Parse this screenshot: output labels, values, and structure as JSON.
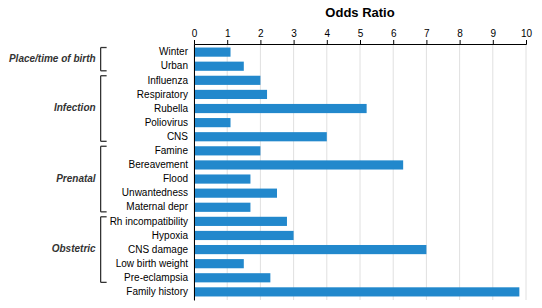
{
  "chart_data": {
    "type": "bar",
    "orientation": "horizontal",
    "title": "Odds Ratio",
    "categories": [
      "Family history",
      "Pre-eclampsia",
      "Low birth weight",
      "CNS damage",
      "Hypoxia",
      "Rh incompatibility",
      "Maternal depr",
      "Unwantedness",
      "Flood",
      "Bereavement",
      "Famine",
      "CNS",
      "Poliovirus",
      "Rubella",
      "Respiratory",
      "Influenza",
      "Urban",
      "Winter"
    ],
    "values": [
      9.8,
      2.3,
      1.5,
      7.0,
      3.0,
      2.8,
      1.7,
      2.5,
      1.7,
      6.3,
      2.0,
      4.0,
      1.1,
      5.2,
      2.2,
      2.0,
      1.5,
      1.1
    ],
    "color": "#2288cc",
    "xlim": [
      0,
      10
    ],
    "xticks": [
      0,
      1,
      2,
      3,
      4,
      5,
      6,
      7,
      8,
      9,
      10
    ],
    "grid": true,
    "groups": [
      {
        "label": "Place/time of birth",
        "categories": [
          "Urban",
          "Winter"
        ]
      },
      {
        "label": "Infection",
        "categories": [
          "CNS",
          "Poliovirus",
          "Rubella",
          "Respiratory",
          "Influenza"
        ]
      },
      {
        "label": "Prenatal",
        "categories": [
          "Maternal depr",
          "Unwantedness",
          "Flood",
          "Bereavement",
          "Famine"
        ]
      },
      {
        "label": "Obstetric",
        "categories": [
          "Pre-eclampsia",
          "Low birth weight",
          "CNS damage",
          "Hypoxia",
          "Rh incompatibility"
        ]
      }
    ]
  }
}
